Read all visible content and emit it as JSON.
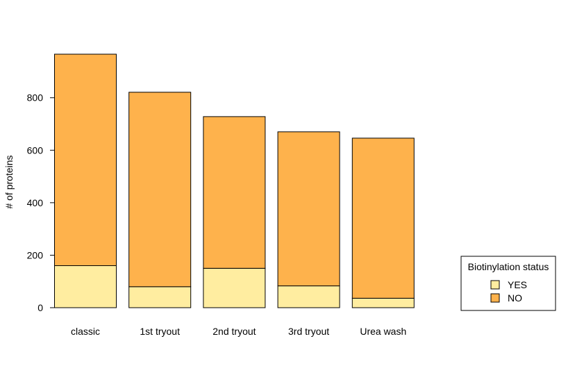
{
  "chart_data": {
    "type": "bar",
    "stacked": true,
    "categories": [
      "classic",
      "1st tryout",
      "2nd tryout",
      "3rd tryout",
      "Urea wash"
    ],
    "series": [
      {
        "name": "YES",
        "color": "#FFEDA0",
        "values": [
          160,
          80,
          150,
          83,
          36
        ]
      },
      {
        "name": "NO",
        "color": "#FEB24C",
        "values": [
          806,
          741,
          578,
          587,
          610
        ]
      }
    ],
    "title": "",
    "xlabel": "",
    "ylabel": "# of proteins",
    "ylim": [
      0,
      966
    ],
    "yticks": [
      0,
      200,
      400,
      600,
      800
    ],
    "grid": false,
    "legend": {
      "title": "Biotinylation status",
      "position": "bottom-right",
      "entries": [
        "YES",
        "NO"
      ]
    }
  }
}
